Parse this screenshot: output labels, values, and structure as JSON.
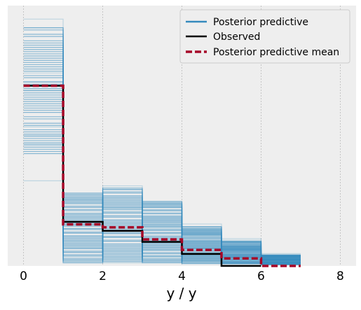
{
  "chart_data": {
    "type": "line",
    "step": "post",
    "title": "",
    "xlabel": "y / y",
    "ylabel": "",
    "xlim": [
      -0.4,
      8.4
    ],
    "ylim": [
      0,
      0.52
    ],
    "xticks": [
      0,
      2,
      4,
      6,
      8
    ],
    "xtick_labels": [
      "0",
      "2",
      "4",
      "6",
      "8"
    ],
    "yticks_shown": false,
    "grid": true,
    "legend_position": "top-right",
    "colors": {
      "posterior_predictive": "#348ABD",
      "observed": "#000000",
      "posterior_predictive_mean": "#A60628",
      "background": "#EEEEEE",
      "grid": "#BBBBBB"
    },
    "legend": [
      {
        "label": "Posterior predictive",
        "color": "#348ABD",
        "dashed": false
      },
      {
        "label": "Observed",
        "color": "#000000",
        "dashed": false
      },
      {
        "label": "Posterior predictive mean",
        "color": "#A60628",
        "dashed": true
      }
    ],
    "bin_edges": [
      0,
      1,
      2,
      3,
      4,
      5,
      6,
      7
    ],
    "observed": [
      0.36,
      0.088,
      0.07,
      0.048,
      0.024,
      0.0
    ],
    "posterior_predictive_mean": [
      0.36,
      0.083,
      0.077,
      0.053,
      0.032,
      0.015,
      0.0
    ],
    "posterior_predictive_envelope": {
      "lows": [
        0.17,
        0.006,
        0.006,
        0.006,
        0.004,
        0.004,
        0.002
      ],
      "highs": [
        0.51,
        0.16,
        0.168,
        0.142,
        0.088,
        0.059,
        0.033
      ],
      "core_lows": [
        0.22,
        0.006,
        0.006,
        0.006,
        0.004,
        0.004,
        0.002
      ],
      "core_highs": [
        0.48,
        0.148,
        0.158,
        0.131,
        0.08,
        0.05,
        0.022
      ]
    }
  }
}
